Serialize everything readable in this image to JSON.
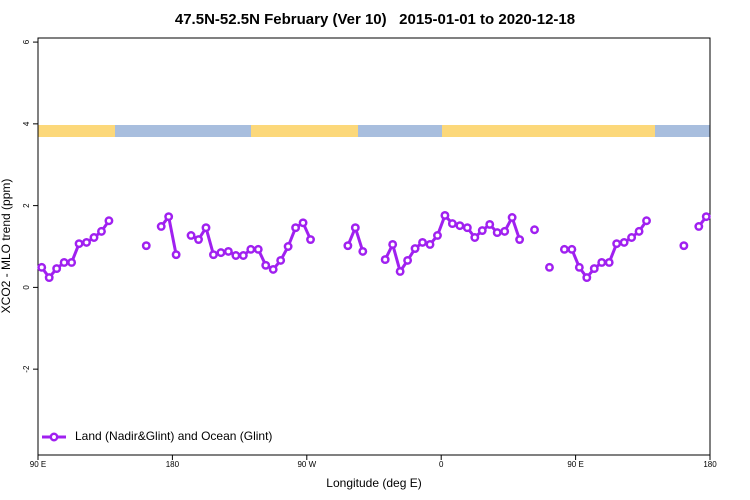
{
  "chart_data": {
    "type": "line",
    "title": "47.5N-52.5N February (Ver 10)   2015-01-01 to 2020-12-18",
    "xlabel": "Longitude (deg E)",
    "ylabel": "XCO2 - MLO trend (ppm)",
    "xlim": [
      90,
      540
    ],
    "ylim": [
      -4.1,
      6.1
    ],
    "xticks": [
      {
        "value": 90,
        "label": "90 E"
      },
      {
        "value": 180,
        "label": "180"
      },
      {
        "value": 270,
        "label": "90 W"
      },
      {
        "value": 360,
        "label": "0"
      },
      {
        "value": 450,
        "label": "90 E"
      },
      {
        "value": 540,
        "label": "180"
      }
    ],
    "yticks": [
      -2,
      0,
      2,
      4,
      6
    ],
    "legend": "bottom left",
    "x": [
      92.5,
      97.5,
      102.5,
      107.5,
      112.5,
      117.5,
      122.5,
      127.5,
      132.5,
      137.5,
      142.5,
      147.5,
      152.5,
      157.5,
      162.5,
      167.5,
      172.5,
      177.5,
      182.5,
      187.5,
      192.5,
      197.5,
      202.5,
      207.5,
      212.5,
      217.5,
      222.5,
      227.5,
      232.5,
      237.5,
      242.5,
      247.5,
      252.5,
      257.5,
      262.5,
      267.5,
      272.5,
      277.5,
      282.5,
      287.5,
      292.5,
      297.5,
      302.5,
      307.5,
      312.5,
      317.5,
      322.5,
      327.5,
      332.5,
      337.5,
      342.5,
      347.5,
      352.5,
      357.5,
      362.5,
      367.5,
      372.5,
      377.5,
      382.5,
      387.5,
      392.5,
      397.5,
      402.5,
      407.5,
      412.5,
      417.5,
      422.5,
      427.5,
      432.5,
      437.5,
      442.5,
      447.5,
      452.5,
      457.5,
      462.5,
      467.5,
      472.5,
      477.5,
      482.5,
      487.5,
      492.5,
      497.5,
      502.5,
      507.5,
      512.5,
      517.5,
      522.5,
      527.5,
      532.5,
      537.5
    ],
    "series": [
      {
        "name": "Land (Nadir&Glint) and Ocean (Glint)",
        "color": "#a020f0",
        "values": [
          0.49,
          0.24,
          0.46,
          0.61,
          0.61,
          1.07,
          1.1,
          1.22,
          1.37,
          1.63,
          null,
          null,
          null,
          null,
          1.02,
          null,
          1.49,
          1.73,
          0.8,
          null,
          1.27,
          1.17,
          1.46,
          0.8,
          0.85,
          0.88,
          0.78,
          0.78,
          0.93,
          0.93,
          0.54,
          0.44,
          0.66,
          1.0,
          1.46,
          1.58,
          1.17,
          null,
          null,
          null,
          null,
          1.02,
          1.46,
          0.88,
          null,
          null,
          0.68,
          1.05,
          0.39,
          0.66,
          0.95,
          1.1,
          1.05,
          1.27,
          1.76,
          1.56,
          1.51,
          1.46,
          1.22,
          1.39,
          1.54,
          1.34,
          1.37,
          1.71,
          1.17,
          null,
          1.41,
          null,
          0.49,
          null,
          0.93,
          0.93,
          0.49,
          0.24,
          0.46,
          0.61,
          0.61,
          1.07,
          1.1,
          1.22,
          1.37,
          1.63,
          null,
          null,
          null,
          null,
          1.02,
          null,
          1.49,
          1.73
        ]
      }
    ]
  }
}
